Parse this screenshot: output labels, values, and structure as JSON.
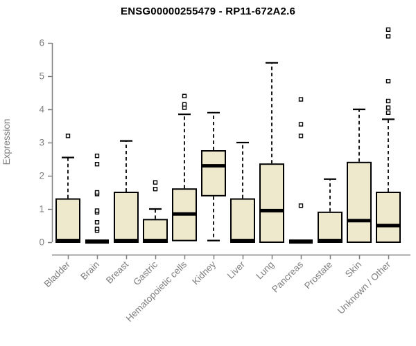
{
  "title": "ENSG00000255479 - RP11-672A2.6",
  "colors": {
    "background": "#FFFFFF",
    "box_fill": "#EEE8CD",
    "box_border": "#000000",
    "median": "#000000",
    "whisker": "#000000",
    "outlier_stroke": "#000000",
    "outlier_fill": "#FFFFFF",
    "axis": "#7E7E7E",
    "tick_text": "#7E7E7E",
    "title_text": "#000000"
  },
  "chart_data": {
    "type": "boxplot",
    "title": "ENSG00000255479 - RP11-672A2.6",
    "xlabel": "",
    "ylabel": "Expression",
    "ylim": [
      0,
      6.5
    ],
    "y_ticks": [
      0,
      1,
      2,
      3,
      4,
      5,
      6
    ],
    "grid": false,
    "legend": "none",
    "categories": [
      "Bladder",
      "Brain",
      "Breast",
      "Gastric",
      "Hematopoietic cells",
      "Kidney",
      "Liver",
      "Lung",
      "Pancreas",
      "Prostate",
      "Skin",
      "Unknown / Other"
    ],
    "boxes": [
      {
        "category": "Bladder",
        "whisker_low": 0,
        "q1": 0,
        "median": 0.05,
        "q3": 1.3,
        "whisker_high": 2.55,
        "outliers": [
          3.2
        ]
      },
      {
        "category": "Brain",
        "whisker_low": 0,
        "q1": 0,
        "median": 0.02,
        "q3": 0.04,
        "whisker_high": 0.04,
        "outliers": [
          0.35,
          0.4,
          0.6,
          0.9,
          0.95,
          1.45,
          1.5,
          2.35,
          2.6
        ]
      },
      {
        "category": "Breast",
        "whisker_low": 0,
        "q1": 0,
        "median": 0.05,
        "q3": 1.5,
        "whisker_high": 3.05,
        "outliers": []
      },
      {
        "category": "Gastric",
        "whisker_low": 0,
        "q1": 0,
        "median": 0.05,
        "q3": 0.68,
        "whisker_high": 1.0,
        "outliers": [
          1.6,
          1.8
        ]
      },
      {
        "category": "Hematopoietic cells",
        "whisker_low": 0,
        "q1": 0.05,
        "median": 0.85,
        "q3": 1.6,
        "whisker_high": 3.85,
        "outliers": [
          4.05,
          4.15,
          4.4
        ]
      },
      {
        "category": "Kidney",
        "whisker_low": 0.05,
        "q1": 1.4,
        "median": 2.3,
        "q3": 2.75,
        "whisker_high": 3.9,
        "outliers": []
      },
      {
        "category": "Liver",
        "whisker_low": 0,
        "q1": 0,
        "median": 0.05,
        "q3": 1.3,
        "whisker_high": 3.0,
        "outliers": []
      },
      {
        "category": "Lung",
        "whisker_low": 0,
        "q1": 0,
        "median": 0.95,
        "q3": 2.35,
        "whisker_high": 5.4,
        "outliers": []
      },
      {
        "category": "Pancreas",
        "whisker_low": 0,
        "q1": 0,
        "median": 0.02,
        "q3": 0.04,
        "whisker_high": 0.04,
        "outliers": [
          1.1,
          3.2,
          3.55,
          4.3
        ]
      },
      {
        "category": "Prostate",
        "whisker_low": 0,
        "q1": 0,
        "median": 0.05,
        "q3": 0.9,
        "whisker_high": 1.9,
        "outliers": []
      },
      {
        "category": "Skin",
        "whisker_low": 0,
        "q1": 0,
        "median": 0.65,
        "q3": 2.4,
        "whisker_high": 4.0,
        "outliers": []
      },
      {
        "category": "Unknown / Other",
        "whisker_low": 0,
        "q1": 0,
        "median": 0.5,
        "q3": 1.5,
        "whisker_high": 3.7,
        "outliers": [
          3.9,
          4.05,
          4.25,
          4.85,
          6.2,
          6.4
        ]
      }
    ]
  }
}
